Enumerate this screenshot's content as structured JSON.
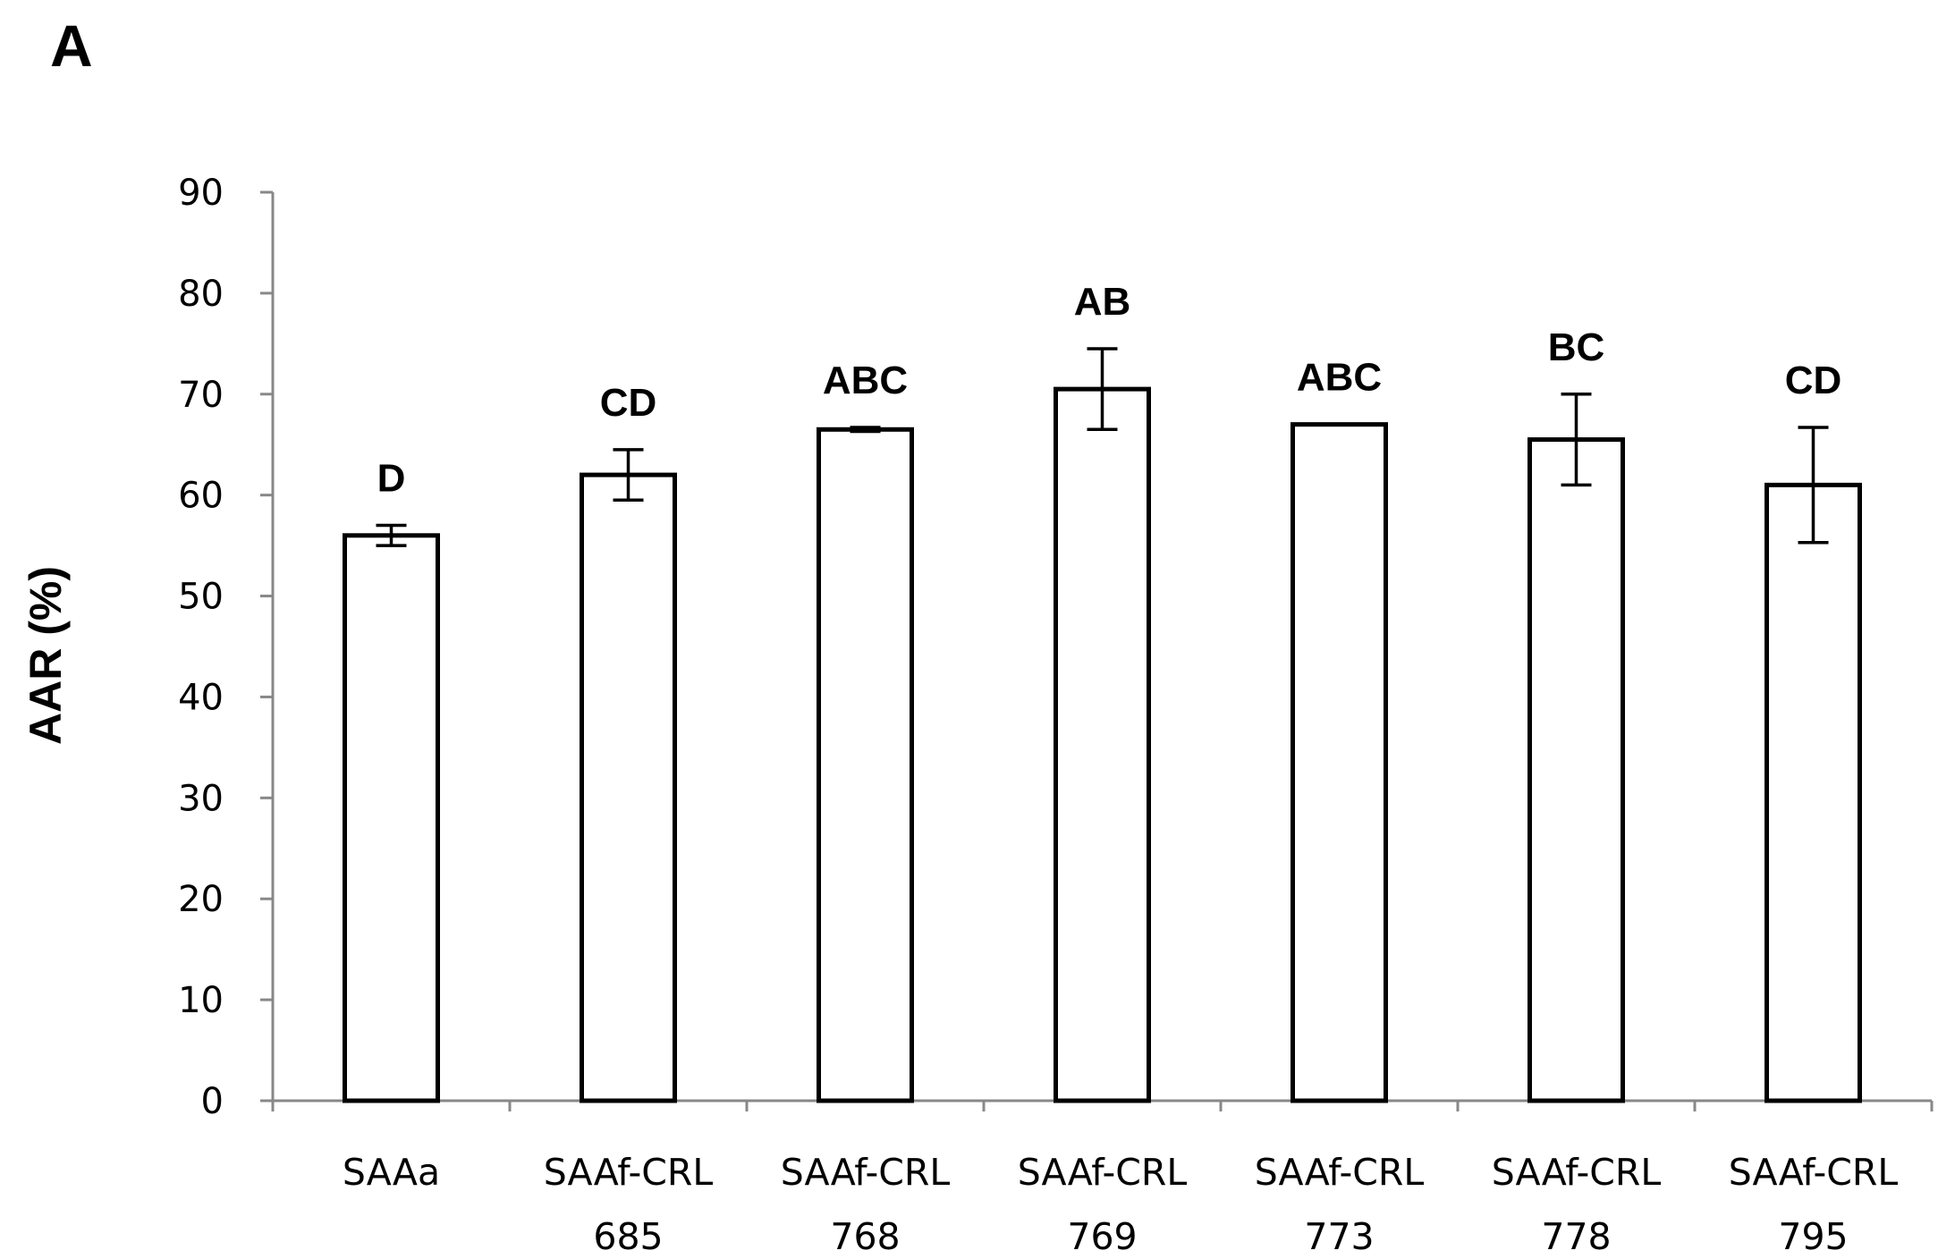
{
  "panel_label": "A",
  "chart_data": {
    "type": "bar",
    "title": "",
    "xlabel": "",
    "ylabel": "AAR (%)",
    "ylim": [
      0,
      90
    ],
    "yticks": [
      0,
      10,
      20,
      30,
      40,
      50,
      60,
      70,
      80,
      90
    ],
    "grid": false,
    "legend": "none",
    "categories": [
      [
        "SAAa"
      ],
      [
        "SAAf-CRL",
        "685"
      ],
      [
        "SAAf-CRL",
        "768"
      ],
      [
        "SAAf-CRL",
        "769"
      ],
      [
        "SAAf-CRL",
        "773"
      ],
      [
        "SAAf-CRL",
        "778"
      ],
      [
        "SAAf-CRL",
        "795"
      ]
    ],
    "values": [
      56,
      62,
      66.5,
      70.5,
      67,
      65.5,
      61
    ],
    "errors": [
      1,
      2.5,
      0.2,
      4,
      0,
      4.5,
      5.7
    ],
    "group_labels": [
      "D",
      "CD",
      "ABC",
      "AB",
      "ABC",
      "BC",
      "CD"
    ],
    "bar_color": "#ffffff",
    "edge_color": "#000000"
  }
}
